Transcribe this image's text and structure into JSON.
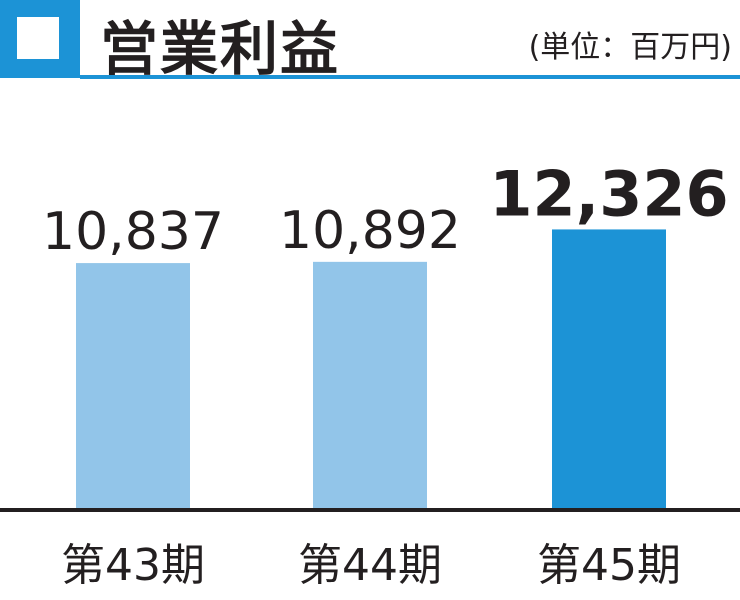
{
  "header": {
    "title": "営業利益",
    "unit": "(単位：百万円)"
  },
  "colors": {
    "accent": "#1c93d6",
    "bar_previous": "#92c5e9",
    "bar_current": "#1c93d6",
    "text": "#231f20"
  },
  "chart_data": {
    "type": "bar",
    "title": "営業利益",
    "categories": [
      "第43期",
      "第44期",
      "第45期"
    ],
    "values": [
      10837,
      10892,
      12326
    ],
    "value_labels": [
      "10,837",
      "10,892",
      "12,326"
    ],
    "highlight_index": 2,
    "ylim": [
      0,
      14000
    ],
    "grid": false,
    "legend": "none"
  }
}
